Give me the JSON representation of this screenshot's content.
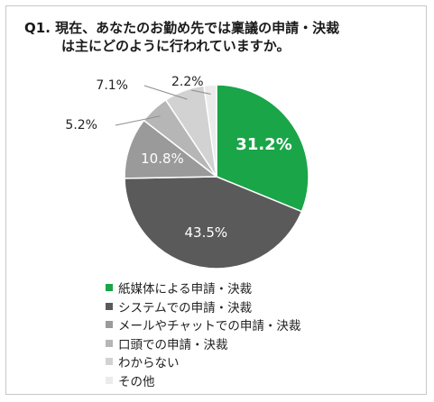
{
  "title": {
    "line1": "Q1. 現在、あなたのお勤め先では稟議の申請・決裁",
    "line2": "は主にどのように行われていますか。"
  },
  "chart_data": {
    "type": "pie",
    "categories": [
      "紙媒体による申請・決裁",
      "システムでの申請・決裁",
      "メールやチャットでの申請・決裁",
      "口頭での申請・決裁",
      "わからない",
      "その他"
    ],
    "values": [
      31.2,
      43.5,
      10.8,
      5.2,
      7.1,
      2.2
    ],
    "labels": [
      "31.2%",
      "43.5%",
      "10.8%",
      "5.2%",
      "7.1%",
      "2.2%"
    ],
    "colors": [
      "#1aa548",
      "#5a5a5a",
      "#9a9a9a",
      "#b6b6b6",
      "#d2d2d2",
      "#ebebeb"
    ],
    "start": "12 o'clock",
    "direction": "clockwise",
    "legend_position": "bottom-left"
  }
}
